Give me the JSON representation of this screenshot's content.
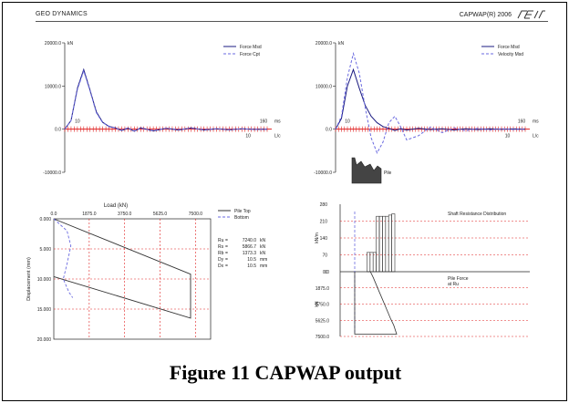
{
  "header": {
    "company": "GEO DYNAMICS",
    "software": "CAPWAP(R) 2006",
    "logo_icon": "pdi-logo-icon"
  },
  "caption": "Figure 11 CAPWAP output",
  "colors": {
    "measured": "#1a1a80",
    "computed": "#6a6ae0",
    "gridline": "#e02020",
    "axis": "#222222"
  },
  "chart_data": [
    {
      "type": "line",
      "panel": "force-match",
      "ylabel_unit": "kN",
      "yticks": [
        "20000.0",
        "10000.0",
        "0.0",
        "-10000.0"
      ],
      "ytick_values": [
        20000,
        10000,
        0,
        -10000
      ],
      "ylim": [
        -10000,
        20000
      ],
      "top_axis_label": "ms",
      "top_axis_ticks": [
        "10",
        "160"
      ],
      "bottom_axis_label": "L/c",
      "bottom_axis_ticks": [
        "10"
      ],
      "x": [
        0,
        5,
        10,
        15,
        20,
        25,
        30,
        35,
        40,
        45,
        50,
        55,
        60,
        70,
        80,
        90,
        100,
        110,
        120,
        130,
        140,
        150,
        160
      ],
      "series": [
        {
          "name": "Force Msd",
          "values": [
            0,
            2000,
            9500,
            13800,
            9000,
            4000,
            1600,
            600,
            300,
            -300,
            200,
            -500,
            300,
            -400,
            200,
            -200,
            300,
            -200,
            100,
            -150,
            100,
            -50,
            0
          ]
        },
        {
          "name": "Force Cpt",
          "values": [
            0,
            2000,
            9200,
            13500,
            8800,
            3800,
            1500,
            700,
            200,
            -200,
            300,
            -400,
            200,
            -300,
            200,
            -100,
            200,
            -100,
            100,
            -100,
            50,
            -50,
            0
          ]
        }
      ],
      "legend_position": "top-right"
    },
    {
      "type": "line",
      "panel": "wave-match",
      "ylabel_unit": "kN",
      "yticks": [
        "20000.0",
        "10000.0",
        "0.0",
        "-10000.0"
      ],
      "ytick_values": [
        20000,
        10000,
        0,
        -10000
      ],
      "ylim": [
        -10000,
        20000
      ],
      "top_axis_label": "ms",
      "top_axis_ticks": [
        "10",
        "160"
      ],
      "bottom_axis_label": "L/c",
      "bottom_axis_ticks": [
        "10"
      ],
      "x": [
        0,
        5,
        10,
        15,
        20,
        25,
        30,
        35,
        40,
        45,
        50,
        55,
        60,
        70,
        80,
        90,
        100,
        110,
        120,
        130,
        140,
        150,
        160
      ],
      "series": [
        {
          "name": "Force Msd",
          "values": [
            0,
            2500,
            10000,
            13800,
            9500,
            5500,
            3000,
            1500,
            600,
            200,
            -300,
            100,
            -200,
            200,
            -100,
            100,
            -200,
            100,
            -100,
            100,
            -50,
            50,
            0
          ]
        },
        {
          "name": "Velocity Msd",
          "values": [
            0,
            3000,
            12000,
            17500,
            13000,
            5000,
            -2000,
            -5500,
            -3000,
            1500,
            3000,
            500,
            -2500,
            -1500,
            500,
            -800,
            300,
            -400,
            200,
            -200,
            100,
            -100,
            0
          ]
        }
      ],
      "legend_position": "top-right",
      "annotation": "Pile"
    },
    {
      "type": "line",
      "panel": "load-displacement",
      "title": "Load (kN)",
      "ylabel": "Displacement (mm)",
      "xticks": [
        "0.0",
        "1875.0",
        "3750.0",
        "5625.0",
        "7500.0"
      ],
      "xtick_values": [
        0,
        1875,
        3750,
        5625,
        7500
      ],
      "yticks": [
        "0.000",
        "5.000",
        "10.000",
        "15.000",
        "20.000"
      ],
      "ytick_values": [
        0,
        5,
        10,
        15,
        20
      ],
      "xlim": [
        0,
        8300
      ],
      "ylim": [
        0,
        20
      ],
      "series": [
        {
          "name": "Pile Top",
          "points": [
            [
              0,
              0
            ],
            [
              7240,
              9.2
            ],
            [
              7240,
              16.5
            ],
            [
              0,
              9.6
            ]
          ]
        },
        {
          "name": "Bottom",
          "points": [
            [
              0,
              0
            ],
            [
              700,
              2.0
            ],
            [
              900,
              4.5
            ],
            [
              700,
              7.5
            ],
            [
              500,
              10.0
            ],
            [
              800,
              12.2
            ],
            [
              1000,
              13.1
            ]
          ]
        }
      ],
      "legend_position": "top-right",
      "results": [
        {
          "label": "Ru",
          "value": "7240.0",
          "unit": "kN"
        },
        {
          "label": "Rs",
          "value": "5866.7",
          "unit": "kN"
        },
        {
          "label": "Rb",
          "value": "1373.3",
          "unit": "kN"
        },
        {
          "label": "Dy",
          "value": "10.5",
          "unit": "mm"
        },
        {
          "label": "Dx",
          "value": "10.5",
          "unit": "mm"
        }
      ]
    },
    {
      "type": "bar",
      "panel": "shaft-resistance",
      "ylabel": "kN/m",
      "yticks": [
        "280",
        "210",
        "140",
        "70",
        "0"
      ],
      "ytick_values": [
        280,
        210,
        140,
        70,
        0
      ],
      "ylim": [
        0,
        280
      ],
      "bar_depths": [
        1,
        2,
        3,
        4,
        5,
        6,
        7,
        8,
        9,
        10
      ],
      "values": [
        0,
        80,
        80,
        80,
        230,
        230,
        230,
        230,
        235,
        240
      ],
      "legend": "Shaft Resistance Distribution"
    },
    {
      "type": "line",
      "panel": "pile-force",
      "ylabel": "kN",
      "yticks": [
        "0.0",
        "1875.0",
        "3750.0",
        "5625.0",
        "7500.0"
      ],
      "ytick_values": [
        0,
        1875,
        3750,
        5625,
        7500
      ],
      "ylim": [
        0,
        7500
      ],
      "x": [
        0,
        1,
        2,
        3,
        4,
        5,
        6,
        7,
        8,
        9,
        10
      ],
      "values": [
        0,
        0,
        700,
        1500,
        2300,
        3100,
        3900,
        4700,
        5500,
        6200,
        7240
      ],
      "legend": "Pile Force at Ru"
    }
  ]
}
